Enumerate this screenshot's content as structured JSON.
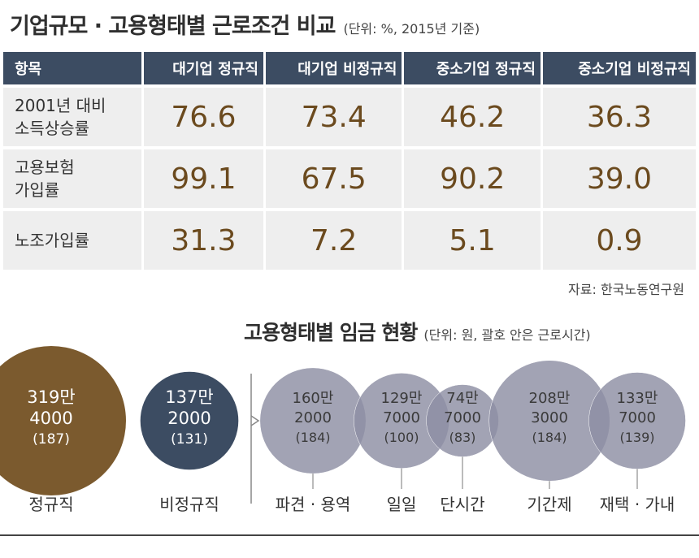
{
  "title": "기업규모 · 고용형태별 근로조건 비교",
  "title_unit": "(단위: %, 2015년 기준)",
  "table": {
    "headers": [
      "항목",
      "대기업 정규직",
      "대기업 비정규직",
      "중소기업 정규직",
      "중소기업 비정규직"
    ],
    "rows": [
      {
        "label_lines": [
          "2001년 대비",
          "소득상승률"
        ],
        "values": [
          "76.6",
          "73.4",
          "46.2",
          "36.3"
        ]
      },
      {
        "label_lines": [
          "고용보험",
          "가입률"
        ],
        "values": [
          "99.1",
          "67.5",
          "90.2",
          "39.0"
        ]
      },
      {
        "label_lines": [
          "노조가입률"
        ],
        "values": [
          "31.3",
          "7.2",
          "5.1",
          "0.9"
        ]
      }
    ]
  },
  "source": "자료: 한국노동연구원",
  "chart_data": {
    "type": "bubble",
    "title": "고용형태별 임금 현황",
    "subtitle": "(단위: 원, 괄호 안은 근로시간)",
    "groups": [
      {
        "name": "정규직",
        "wage_won": 3194000,
        "wage_lines": [
          "319만",
          "4000"
        ],
        "hours": "(187)",
        "color": "#7b5a2e"
      },
      {
        "name": "비정규직",
        "wage_won": 1372000,
        "wage_lines": [
          "137만",
          "2000"
        ],
        "hours": "(131)",
        "color": "#3c4c62"
      }
    ],
    "breakdown": [
      {
        "name": "파견 · 용역",
        "wage_won": 1602000,
        "wage_lines": [
          "160만",
          "2000"
        ],
        "hours": "(184)"
      },
      {
        "name": "일일",
        "wage_won": 1297000,
        "wage_lines": [
          "129만",
          "7000"
        ],
        "hours": "(100)"
      },
      {
        "name": "단시간",
        "wage_won": 747000,
        "wage_lines": [
          "74만",
          "7000"
        ],
        "hours": "(83)"
      },
      {
        "name": "기간제",
        "wage_won": 2083000,
        "wage_lines": [
          "208만",
          "3000"
        ],
        "hours": "(184)"
      },
      {
        "name": "재택 · 가내",
        "wage_won": 1337000,
        "wage_lines": [
          "133만",
          "7000"
        ],
        "hours": "(139)"
      }
    ],
    "breakdown_color": "#8e8fa3"
  }
}
